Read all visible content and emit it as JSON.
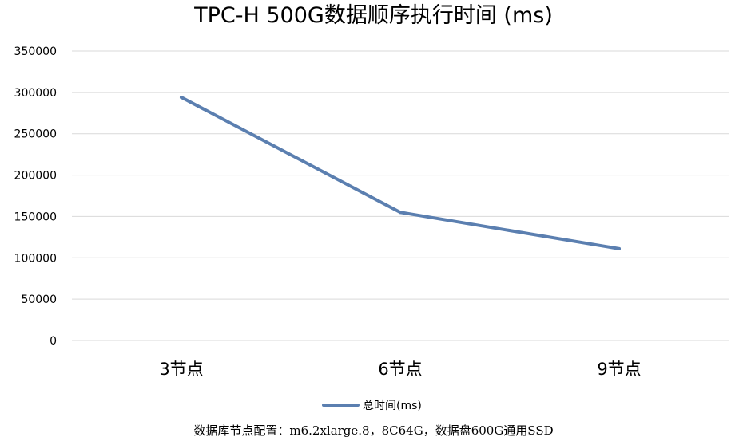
{
  "chart_data": {
    "type": "line",
    "title": "TPC-H 500G数据顺序执行时间 (ms)",
    "categories": [
      "3节点",
      "6节点",
      "9节点"
    ],
    "series": [
      {
        "name": "总时间(ms)",
        "values": [
          294000,
          155000,
          111000
        ],
        "color": "#5b7fb0"
      }
    ],
    "ylim": [
      0,
      350000
    ],
    "yticks": [
      0,
      50000,
      100000,
      150000,
      200000,
      250000,
      300000,
      350000
    ],
    "xlabel": "",
    "ylabel": "",
    "grid": true,
    "legend": "bottom"
  },
  "caption": "数据库节点配置：m6.2xlarge.8，8C64G，数据盘600G通用SSD"
}
